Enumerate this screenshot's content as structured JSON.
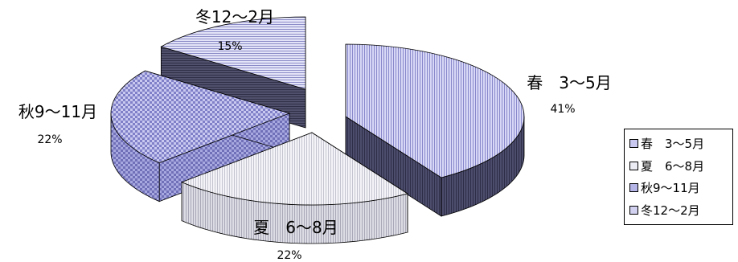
{
  "chart_data": {
    "type": "pie",
    "style": "3d-exploded",
    "title": "",
    "slices": [
      {
        "label": "春　3～5月",
        "value": 41,
        "value_label": "41%",
        "color": "#c8c8f0",
        "side_color": "#505070",
        "pattern": "vertical-lines"
      },
      {
        "label": "夏　6～8月",
        "value": 22,
        "value_label": "22%",
        "color": "#ececf4",
        "side_color": "#d2d2da",
        "pattern": "vertical-lines"
      },
      {
        "label": "秋9～11月",
        "value": 22,
        "value_label": "22%",
        "color": "#b4b4e6",
        "side_color": "#9696d2",
        "pattern": "checker"
      },
      {
        "label": "冬12～2月",
        "value": 15,
        "value_label": "15%",
        "color": "#d2d2f0",
        "side_color": "#4a4a64",
        "pattern": "horizontal-lines"
      }
    ],
    "legend": {
      "position": "right",
      "items": [
        "春　3～5月",
        "夏　6～8月",
        "秋9～11月",
        "冬12～2月"
      ]
    }
  }
}
